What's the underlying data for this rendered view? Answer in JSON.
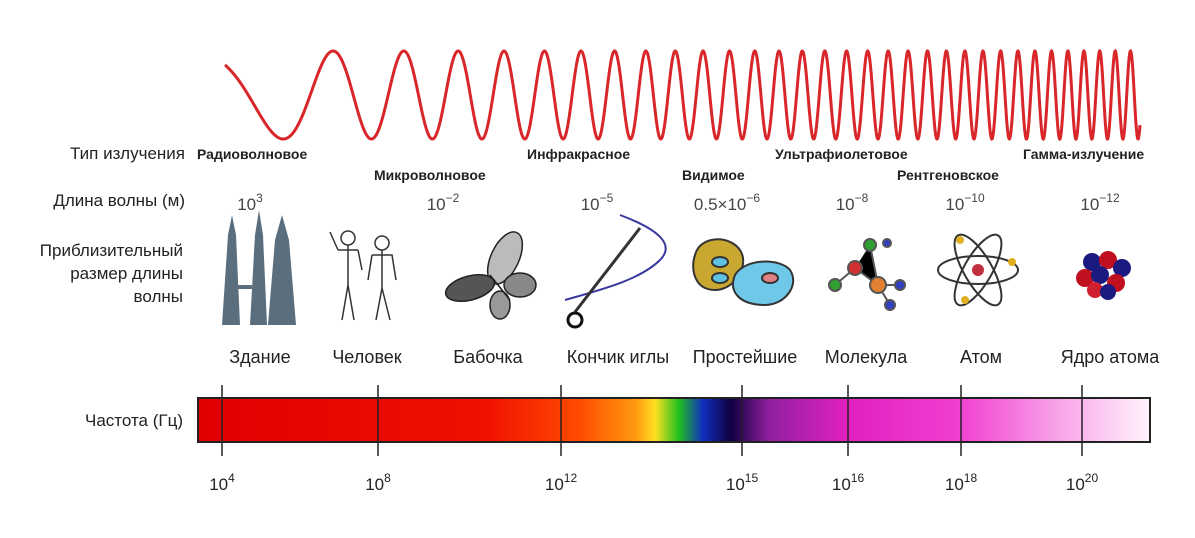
{
  "row_labels": {
    "type": "Тип излучения",
    "wavelength": "Длина волны (м)",
    "size": [
      "Приблизительный",
      "размер длины",
      "волны"
    ],
    "frequency": "Частота (Гц)"
  },
  "radiation_types": [
    "Радиоволновое",
    "Микроволновое",
    "Инфракрасное",
    "Видимое",
    "Ультрафиолетовое",
    "Рентгеновское",
    "Гамма-излучение"
  ],
  "wavelengths": [
    {
      "base": "10",
      "exp": "3"
    },
    {
      "base": "10",
      "exp": "−2"
    },
    {
      "base": "10",
      "exp": "−5"
    },
    {
      "base": "0.5×10",
      "exp": "−6"
    },
    {
      "base": "10",
      "exp": "−8"
    },
    {
      "base": "10",
      "exp": "−10"
    },
    {
      "base": "10",
      "exp": "−12"
    }
  ],
  "objects": [
    "Здание",
    "Человек",
    "Бабочка",
    "Кончик иглы",
    "Простейшие",
    "Молекула",
    "Атом",
    "Ядро атома"
  ],
  "frequency_ticks": [
    {
      "base": "10",
      "exp": "4"
    },
    {
      "base": "10",
      "exp": "8"
    },
    {
      "base": "10",
      "exp": "12"
    },
    {
      "base": "10",
      "exp": "15"
    },
    {
      "base": "10",
      "exp": "16"
    },
    {
      "base": "10",
      "exp": "18"
    },
    {
      "base": "10",
      "exp": "20"
    }
  ]
}
